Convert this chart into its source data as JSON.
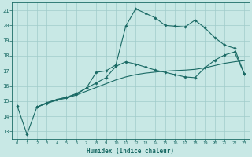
{
  "xlabel": "Humidex (Indice chaleur)",
  "xlim": [
    -0.5,
    23.5
  ],
  "ylim": [
    12.5,
    21.5
  ],
  "yticks": [
    13,
    14,
    15,
    16,
    17,
    18,
    19,
    20,
    21
  ],
  "xticks": [
    0,
    1,
    2,
    3,
    4,
    5,
    6,
    7,
    8,
    9,
    10,
    11,
    12,
    13,
    14,
    15,
    16,
    17,
    18,
    19,
    20,
    21,
    22,
    23
  ],
  "bg_color": "#c8e8e5",
  "grid_color": "#a0ccca",
  "line_color": "#1a6a65",
  "line1_x": [
    0,
    1,
    2,
    3,
    4,
    5,
    6,
    7,
    8,
    9,
    10,
    11,
    12,
    13,
    14,
    15,
    16,
    17,
    18,
    19,
    20,
    21,
    22,
    23
  ],
  "line1_y": [
    14.7,
    12.8,
    14.6,
    14.9,
    15.1,
    15.25,
    15.5,
    15.85,
    16.9,
    17.0,
    17.4,
    19.95,
    21.1,
    20.8,
    20.5,
    20.0,
    19.95,
    19.9,
    20.35,
    19.85,
    19.2,
    18.7,
    18.5,
    16.8
  ],
  "line2_x": [
    2,
    3,
    4,
    5,
    6,
    7,
    8,
    9,
    10,
    11,
    12,
    13,
    14,
    15,
    16,
    17,
    18,
    19,
    20,
    21,
    22,
    23
  ],
  "line2_y": [
    14.6,
    14.85,
    15.1,
    15.25,
    15.45,
    15.85,
    16.2,
    16.55,
    17.3,
    17.6,
    17.45,
    17.25,
    17.05,
    16.9,
    16.75,
    16.6,
    16.55,
    17.2,
    17.7,
    18.05,
    18.25,
    16.8
  ],
  "line3_x": [
    2,
    3,
    4,
    5,
    6,
    7,
    8,
    9,
    10,
    11,
    12,
    13,
    14,
    15,
    16,
    17,
    18,
    19,
    20,
    21,
    22,
    23
  ],
  "line3_y": [
    14.6,
    14.85,
    15.05,
    15.2,
    15.4,
    15.65,
    15.9,
    16.15,
    16.4,
    16.6,
    16.75,
    16.85,
    16.92,
    16.98,
    17.02,
    17.05,
    17.1,
    17.2,
    17.35,
    17.5,
    17.6,
    17.68
  ]
}
